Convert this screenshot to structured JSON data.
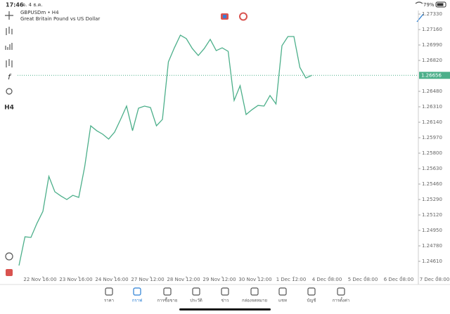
{
  "status_bar": {
    "time": "17:46",
    "date": "จ. 4 ธ.ค.",
    "battery": "79%"
  },
  "toolbar": {
    "timeframe": "H4"
  },
  "chart_data": {
    "type": "line",
    "title": "GBPUSDm • H4",
    "subtitle": "Great Britain Pound vs US Dollar",
    "color": "#4caf8a",
    "categories": [
      null,
      null,
      null,
      null,
      "22 Nov 16:00",
      null,
      null,
      null,
      null,
      null,
      "23 Nov 16:00",
      null,
      null,
      null,
      null,
      null,
      "24 Nov 16:00",
      null,
      null,
      null,
      null,
      null,
      "27 Nov 12:00",
      null,
      null,
      null,
      null,
      null,
      "28 Nov 12:00",
      null,
      null,
      null,
      null,
      null,
      "29 Nov 12:00",
      null,
      null,
      null,
      null,
      null,
      "30 Nov 12:00",
      null,
      null,
      null,
      null,
      null,
      "1 Dec 12:00",
      null,
      null,
      null,
      null,
      null,
      "4 Dec 08:00",
      null,
      null,
      null,
      null,
      null,
      "5 Dec 08:00",
      null,
      null,
      null,
      null,
      null,
      "6 Dec 08:00",
      null,
      null,
      null,
      null,
      null,
      "7 Dec 08:00"
    ],
    "values": [
      1.24564,
      1.2488,
      1.24873,
      1.25027,
      1.25159,
      1.25545,
      1.25375,
      1.25329,
      1.2529,
      1.25336,
      1.25313,
      1.25653,
      1.26101,
      1.26047,
      1.26009,
      1.25955,
      1.26032,
      1.26171,
      1.26318,
      1.26047,
      1.26295,
      1.26318,
      1.26302,
      1.26101,
      1.26171,
      1.26805,
      1.26959,
      1.27098,
      1.2706,
      1.26951,
      1.26874,
      1.26951,
      1.27052,
      1.26928,
      1.26959,
      1.2692,
      1.2638,
      1.26542,
      1.26225,
      1.26279,
      1.26325,
      1.26318,
      1.26434,
      1.26341,
      1.26982,
      1.27083,
      1.27083,
      1.26743,
      1.26627,
      1.26656,
      null,
      null,
      null,
      null,
      null,
      null,
      null,
      null,
      null,
      null,
      null,
      null,
      null,
      null,
      null,
      null,
      null,
      null,
      null,
      null,
      null
    ],
    "current_price": 1.26656,
    "ylim": [
      1.24355,
      1.27369
    ],
    "yticks": [
      {
        "value": 1.2733,
        "label": "1.27330"
      },
      {
        "value": 1.2716,
        "label": "1.27160"
      },
      {
        "value": 1.2699,
        "label": "1.26990"
      },
      {
        "value": 1.2682,
        "label": "1.26820"
      },
      {
        "value": 1.2648,
        "label": "1.26480"
      },
      {
        "value": 1.2631,
        "label": "1.26310"
      },
      {
        "value": 1.2614,
        "label": "1.26140"
      },
      {
        "value": 1.2597,
        "label": "1.25970"
      },
      {
        "value": 1.258,
        "label": "1.25800"
      },
      {
        "value": 1.2563,
        "label": "1.25630"
      },
      {
        "value": 1.2546,
        "label": "1.25460"
      },
      {
        "value": 1.2529,
        "label": "1.25290"
      },
      {
        "value": 1.2512,
        "label": "1.25120"
      },
      {
        "value": 1.2495,
        "label": "1.24950"
      },
      {
        "value": 1.2478,
        "label": "1.24780"
      },
      {
        "value": 1.2461,
        "label": "1.24610"
      }
    ]
  },
  "tabs": [
    "ราคา",
    "กราฟ",
    "การซื้อขาย",
    "ประวัติ",
    "ข่าว",
    "กล่องจดหมาย",
    "แชท",
    "บัญชี",
    "การตั้งค่า"
  ]
}
